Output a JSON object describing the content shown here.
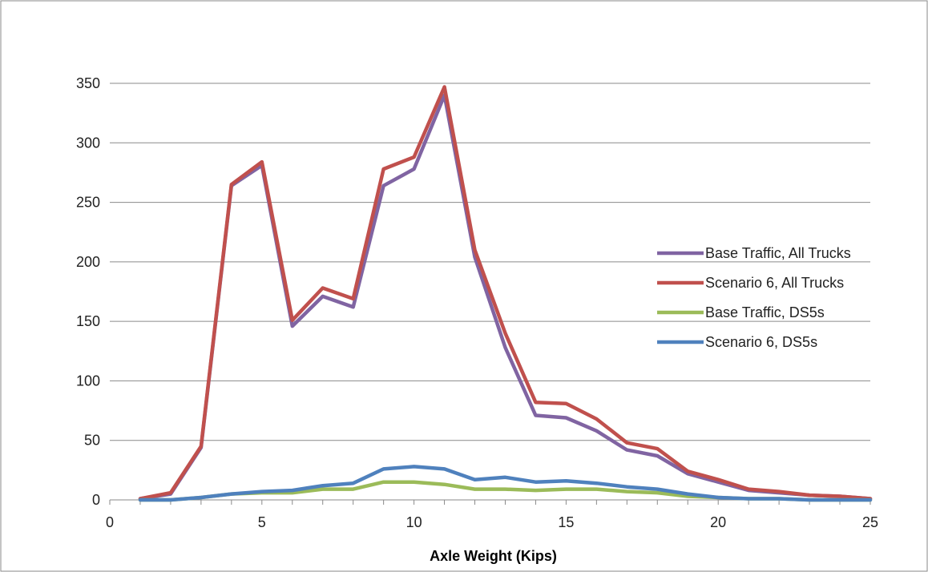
{
  "chart_data": {
    "type": "line",
    "title": "",
    "xlabel": "Axle Weight  (Kips)",
    "ylabel": "",
    "xlim": [
      0,
      25
    ],
    "ylim": [
      0,
      350
    ],
    "xticks": [
      0,
      5,
      10,
      15,
      20,
      25
    ],
    "yticks": [
      0,
      50,
      100,
      150,
      200,
      250,
      300,
      350
    ],
    "grid": "horizontal",
    "legend_position": "right",
    "x": [
      1,
      2,
      3,
      4,
      5,
      6,
      7,
      8,
      9,
      10,
      11,
      12,
      13,
      14,
      15,
      16,
      17,
      18,
      19,
      20,
      21,
      22,
      23,
      24,
      25
    ],
    "series": [
      {
        "name": "Base Traffic, All Trucks",
        "color": "#8064A2",
        "values": [
          1,
          5,
          44,
          264,
          281,
          146,
          171,
          162,
          264,
          278,
          340,
          204,
          128,
          71,
          69,
          58,
          42,
          37,
          22,
          15,
          8,
          6,
          4,
          3,
          1
        ]
      },
      {
        "name": "Scenario 6, All Trucks",
        "color": "#C0504D",
        "values": [
          1,
          6,
          45,
          265,
          284,
          151,
          178,
          169,
          278,
          288,
          347,
          210,
          140,
          82,
          81,
          68,
          48,
          43,
          24,
          17,
          9,
          7,
          4,
          3,
          1
        ]
      },
      {
        "name": "Base Traffic, DS5s",
        "color": "#9BBB59",
        "values": [
          0,
          0,
          2,
          5,
          6,
          6,
          9,
          9,
          15,
          15,
          13,
          9,
          9,
          8,
          9,
          9,
          7,
          6,
          3,
          2,
          1,
          1,
          0,
          0,
          0
        ]
      },
      {
        "name": "Scenario 6, DS5s",
        "color": "#4F81BD",
        "values": [
          0,
          0,
          2,
          5,
          7,
          8,
          12,
          14,
          26,
          28,
          26,
          17,
          19,
          15,
          16,
          14,
          11,
          9,
          5,
          2,
          1,
          1,
          0,
          0,
          0
        ]
      }
    ]
  }
}
